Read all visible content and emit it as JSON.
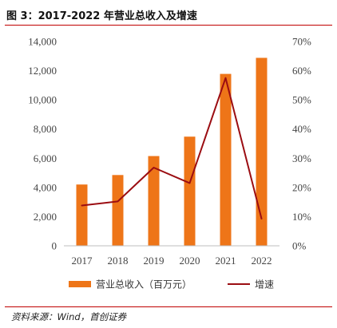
{
  "figure": {
    "title": "图 3：2017-2022 年营业总收入及增速",
    "source": "资料来源：Wind，首创证券"
  },
  "colors": {
    "bar": "#ee7518",
    "line": "#9b0d12",
    "rule": "#c00000"
  },
  "chart_data": {
    "type": "bar",
    "categories": [
      "2017",
      "2018",
      "2019",
      "2020",
      "2021",
      "2022"
    ],
    "series": [
      {
        "name": "营业总收入（百万元）",
        "type": "bar",
        "axis": "left",
        "values": [
          4200,
          4850,
          6150,
          7480,
          11780,
          12880
        ]
      },
      {
        "name": "增速",
        "type": "line",
        "axis": "right",
        "values": [
          13.8,
          15.2,
          26.8,
          21.5,
          57.5,
          9.3
        ]
      }
    ],
    "y_left": {
      "ylim": [
        0,
        14000
      ],
      "ticks": [
        "0",
        "2,000",
        "4,000",
        "6,000",
        "8,000",
        "10,000",
        "12,000",
        "14,000"
      ]
    },
    "y_right": {
      "ylim": [
        0,
        70
      ],
      "ticks": [
        "0%",
        "10%",
        "20%",
        "30%",
        "40%",
        "50%",
        "60%",
        "70%"
      ]
    },
    "grid": false,
    "legend": "bottom"
  }
}
